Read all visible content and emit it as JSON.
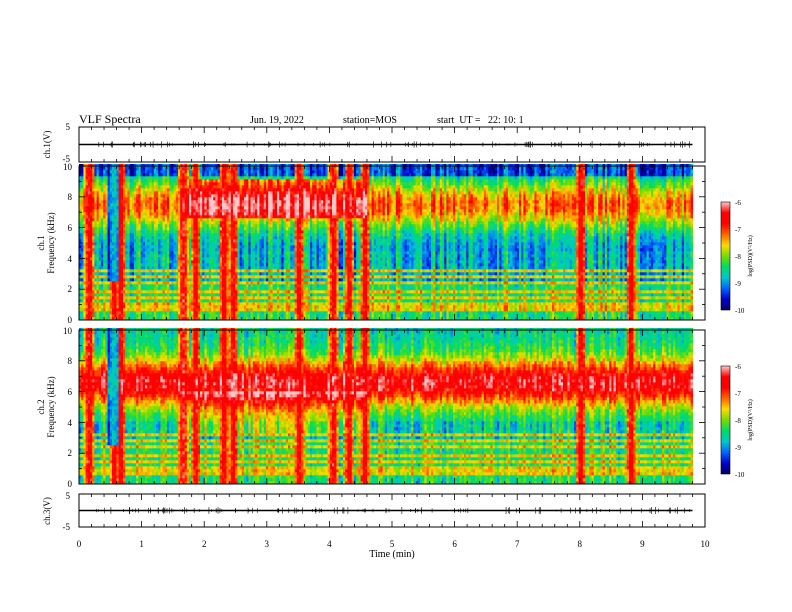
{
  "header": {
    "title": "VLF Spectra",
    "date": "Jun. 19, 2022",
    "station": "station=MOS",
    "start": "start  UT =   22: 10: 1"
  },
  "chart_data": [
    {
      "type": "line",
      "panel": "ch1-waveform",
      "ylabel": "ch.1(V)",
      "ylim": [
        -5,
        5
      ],
      "y_ticks": [
        5,
        -5
      ],
      "x": [
        0,
        1,
        2,
        3,
        4,
        5,
        6,
        7,
        8,
        9,
        9.8
      ],
      "values": [
        0,
        0,
        0,
        0,
        0,
        0,
        0,
        0,
        0,
        0,
        0
      ]
    },
    {
      "type": "heatmap",
      "panel": "ch1-spectrogram",
      "ylabel": "ch.1\nFrequency (kHz)",
      "xlim": [
        0,
        10
      ],
      "ylim": [
        0,
        10
      ],
      "y_ticks": [
        0,
        2,
        4,
        6,
        8,
        10
      ],
      "x_coverage": [
        0,
        9.8
      ],
      "broadband_bursts_min": [
        0.15,
        0.55,
        0.65,
        1.65,
        1.85,
        2.3,
        2.45,
        3.5,
        4.05,
        4.3,
        4.55,
        8.0,
        8.8
      ],
      "line_frequencies_khz": [
        0.5,
        0.8,
        1.0,
        1.3,
        1.7,
        2.3,
        2.7,
        3.2,
        3.6
      ],
      "colorbar": {
        "label": "log(PSD)(V²/Hz)",
        "ticks": [
          -6,
          -7,
          -8,
          -9,
          -10
        ],
        "range": [
          -10,
          -6
        ]
      }
    },
    {
      "type": "heatmap",
      "panel": "ch2-spectrogram",
      "ylabel": "ch.2\nFrequency (kHz)",
      "xlim": [
        0,
        10
      ],
      "ylim": [
        0,
        10
      ],
      "y_ticks": [
        0,
        2,
        4,
        6,
        8,
        10
      ],
      "x_coverage": [
        0,
        9.8
      ],
      "intense_band_khz": [
        5,
        8
      ],
      "broadband_bursts_min": [
        0.15,
        0.55,
        0.65,
        1.65,
        1.85,
        2.3,
        2.45,
        3.5,
        4.05,
        4.3,
        4.55,
        8.0,
        8.8
      ],
      "line_frequencies_khz": [
        0.5,
        0.8,
        1.0,
        1.4,
        1.7,
        2.3,
        2.8,
        3.2
      ],
      "colorbar": {
        "label": "log(PSD)(V²/Hz)",
        "ticks": [
          -6,
          -7,
          -8,
          -9,
          -10
        ],
        "range": [
          -10,
          -6
        ]
      }
    },
    {
      "type": "line",
      "panel": "ch3-waveform",
      "ylabel": "ch.3(V)",
      "ylim": [
        -5,
        5
      ],
      "y_ticks": [
        5,
        -5
      ],
      "x": [
        0,
        1,
        2,
        3,
        4,
        5,
        6,
        7,
        8,
        9,
        9.8
      ],
      "values": [
        0,
        0,
        0,
        0,
        0,
        0,
        0,
        0,
        0,
        0,
        0
      ],
      "xlabel": "Time  (min)",
      "xlim": [
        0,
        10
      ],
      "x_ticks": [
        0,
        1,
        2,
        3,
        4,
        5,
        6,
        7,
        8,
        9,
        10
      ]
    }
  ],
  "colors": {
    "scale": [
      "#000060",
      "#0000c8",
      "#0064ff",
      "#00c8c8",
      "#00dc64",
      "#78dc00",
      "#ffdc00",
      "#ff6400",
      "#ff0000",
      "#ff0000",
      "#ffc8c8"
    ]
  }
}
